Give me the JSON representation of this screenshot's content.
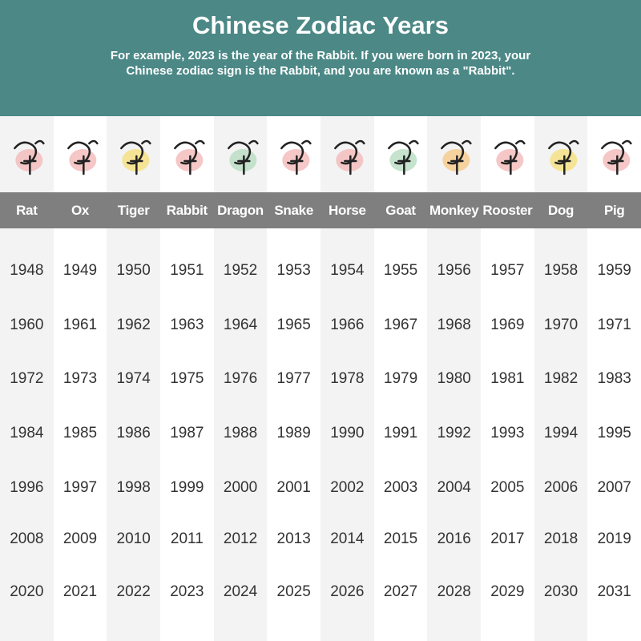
{
  "header": {
    "title": "Chinese Zodiac Years",
    "subtitle_lines": [
      "For example, 2023 is the year of the Rabbit. If you were born in 2023, your",
      "Chinese zodiac sign is the Rabbit, and you are known as a \"Rabbit\"."
    ]
  },
  "table": {
    "columns": [
      "Rat",
      "Ox",
      "Tiger",
      "Rabbit",
      "Dragon",
      "Snake",
      "Horse",
      "Goat",
      "Monkey",
      "Rooster",
      "Dog",
      "Pig"
    ],
    "rows": [
      [
        1948,
        1949,
        1950,
        1951,
        1952,
        1953,
        1954,
        1955,
        1956,
        1957,
        1958,
        1959
      ],
      [
        1960,
        1961,
        1962,
        1963,
        1964,
        1965,
        1966,
        1967,
        1968,
        1969,
        1970,
        1971
      ],
      [
        1972,
        1973,
        1974,
        1975,
        1976,
        1977,
        1978,
        1979,
        1980,
        1981,
        1982,
        1983
      ],
      [
        1984,
        1985,
        1986,
        1987,
        1988,
        1989,
        1990,
        1991,
        1992,
        1993,
        1994,
        1995
      ],
      [
        1996,
        1997,
        1998,
        1999,
        2000,
        2001,
        2002,
        2003,
        2004,
        2005,
        2006,
        2007
      ],
      [
        2008,
        2009,
        2010,
        2011,
        2012,
        2013,
        2014,
        2015,
        2016,
        2017,
        2018,
        2019
      ],
      [
        2020,
        2021,
        2022,
        2023,
        2024,
        2025,
        2026,
        2027,
        2028,
        2029,
        2030,
        2031
      ]
    ]
  }
}
